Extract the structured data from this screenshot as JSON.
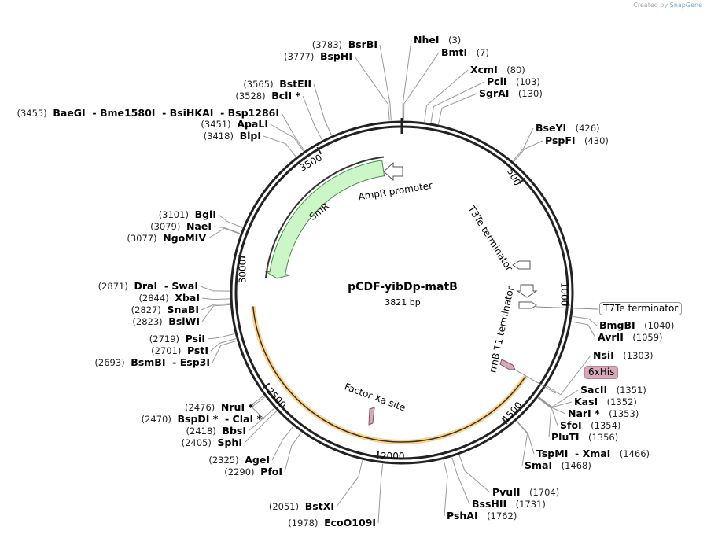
{
  "credit": {
    "prefix": "Created by",
    "brand": "SnapGene"
  },
  "plasmid": {
    "name": "pCDF-yibDp-matB",
    "length_label": "3821 bp",
    "length": 3821
  },
  "ticks": [
    "500",
    "1000",
    "1500",
    "2000",
    "2500",
    "3000",
    "3500"
  ],
  "features": {
    "ampr_promoter": "AmpR promoter",
    "smr": "SmR",
    "t3te": "T3Te terminator",
    "rrnb": "rrnB T1 terminator",
    "factor_xa": "Factor Xa site",
    "t7te": "T7Te terminator",
    "his": "6xHis"
  },
  "colors": {
    "smr": "#ccf5c8",
    "smr_glow": "#9be07a",
    "orf": "#ffd28a",
    "tag": "#d9a8bb",
    "backbone": "#222222"
  },
  "enzymes": [
    {
      "name": "NheI",
      "num": "(3)",
      "pos": 3
    },
    {
      "name": "BmtI",
      "num": "(7)",
      "pos": 7
    },
    {
      "name": "XcmI",
      "num": "(80)",
      "pos": 80
    },
    {
      "name": "PciI",
      "num": "(103)",
      "pos": 103
    },
    {
      "name": "SgrAI",
      "num": "(130)",
      "pos": 130
    },
    {
      "name": "BseYI",
      "num": "(426)",
      "pos": 426
    },
    {
      "name": "PspFI",
      "num": "(430)",
      "pos": 430
    },
    {
      "name": "BmgBI",
      "num": "(1040)",
      "pos": 1040
    },
    {
      "name": "AvrII",
      "num": "(1059)",
      "pos": 1059
    },
    {
      "name": "NsiI",
      "num": "(1303)",
      "pos": 1303
    },
    {
      "name": "SacII",
      "num": "(1351)",
      "pos": 1351
    },
    {
      "name": "KasI",
      "num": "(1352)",
      "pos": 1352
    },
    {
      "name": "NarI *",
      "num": "(1353)",
      "pos": 1353
    },
    {
      "name": "SfoI",
      "num": "(1354)",
      "pos": 1354
    },
    {
      "name": "PluTI",
      "num": "(1356)",
      "pos": 1356
    },
    {
      "name": "TspMI  - XmaI",
      "num": "(1466)",
      "pos": 1466
    },
    {
      "name": "SmaI",
      "num": "(1468)",
      "pos": 1468
    },
    {
      "name": "PvuII",
      "num": "(1704)",
      "pos": 1704
    },
    {
      "name": "BssHII",
      "num": "(1731)",
      "pos": 1731
    },
    {
      "name": "PshAI",
      "num": "(1762)",
      "pos": 1762
    },
    {
      "name": "EcoO109I",
      "num": "(1978)",
      "pos": 1978
    },
    {
      "name": "BstXI",
      "num": "(2051)",
      "pos": 2051
    },
    {
      "name": "PfoI",
      "num": "(2290)",
      "pos": 2290
    },
    {
      "name": "AgeI",
      "num": "(2325)",
      "pos": 2325
    },
    {
      "name": "SphI",
      "num": "(2405)",
      "pos": 2405
    },
    {
      "name": "BbsI",
      "num": "(2418)",
      "pos": 2418
    },
    {
      "name": "BspDI *  - ClaI *",
      "num": "(2470)",
      "pos": 2470
    },
    {
      "name": "NruI *",
      "num": "(2476)",
      "pos": 2476
    },
    {
      "name": "BsmBI  - Esp3I",
      "num": "(2693)",
      "pos": 2693
    },
    {
      "name": "PstI",
      "num": "(2701)",
      "pos": 2701
    },
    {
      "name": "PsiI",
      "num": "(2719)",
      "pos": 2719
    },
    {
      "name": "BsiWI",
      "num": "(2823)",
      "pos": 2823
    },
    {
      "name": "SnaBI",
      "num": "(2827)",
      "pos": 2827
    },
    {
      "name": "XbaI",
      "num": "(2844)",
      "pos": 2844
    },
    {
      "name": "DraI  - SwaI",
      "num": "(2871)",
      "pos": 2871
    },
    {
      "name": "NgoMIV",
      "num": "(3077)",
      "pos": 3077
    },
    {
      "name": "NaeI",
      "num": "(3079)",
      "pos": 3079
    },
    {
      "name": "BglI",
      "num": "(3101)",
      "pos": 3101
    },
    {
      "name": "BlpI",
      "num": "(3418)",
      "pos": 3418
    },
    {
      "name": "ApaLI",
      "num": "(3451)",
      "pos": 3451
    },
    {
      "name": "BaeGI  - Bme1580I  - BsiHKAI  - Bsp1286I",
      "num": "(3455)",
      "pos": 3455
    },
    {
      "name": "BclI *",
      "num": "(3528)",
      "pos": 3528
    },
    {
      "name": "BstEII",
      "num": "(3565)",
      "pos": 3565
    },
    {
      "name": "BspHI",
      "num": "(3777)",
      "pos": 3777
    },
    {
      "name": "BsrBI",
      "num": "(3783)",
      "pos": 3783
    }
  ]
}
